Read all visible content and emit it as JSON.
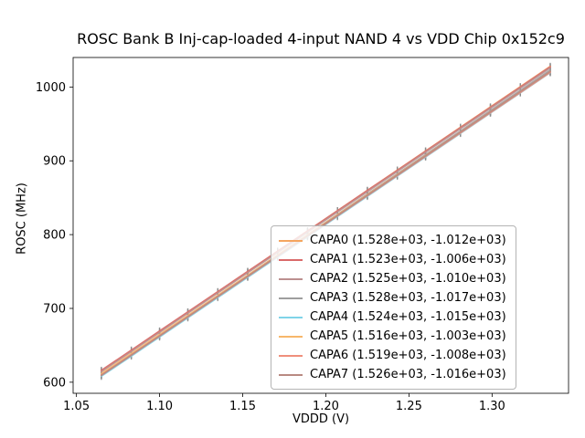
{
  "chart_data": {
    "type": "line",
    "title": "ROSC Bank B Inj-cap-loaded 4-input NAND 4 vs VDD Chip 0x152c9",
    "xlabel": "VDDD (V)",
    "ylabel": "ROSC (MHz)",
    "xlim": [
      1.048,
      1.346
    ],
    "ylim": [
      585,
      1040
    ],
    "xticks": [
      "1.05",
      "1.10",
      "1.15",
      "1.20",
      "1.25",
      "1.30"
    ],
    "xtick_values": [
      1.05,
      1.1,
      1.15,
      1.2,
      1.25,
      1.3
    ],
    "yticks": [
      "600",
      "700",
      "800",
      "900",
      "1000"
    ],
    "ytick_values": [
      600,
      700,
      800,
      900,
      1000
    ],
    "x": [
      1.065,
      1.083,
      1.1,
      1.117,
      1.135,
      1.153,
      1.171,
      1.189,
      1.207,
      1.225,
      1.243,
      1.26,
      1.281,
      1.299,
      1.317,
      1.335
    ],
    "errorbar": {
      "color": "#8a8a8a",
      "half_height": 4
    },
    "legend_position": "lower right of axes",
    "grid": false,
    "series": [
      {
        "name": "CAPA0",
        "label": "CAPA0 (1.528e+03, -1.012e+03)",
        "slope": 1528,
        "intercept": -1012,
        "color": "#f5a55f"
      },
      {
        "name": "CAPA1",
        "label": "CAPA1 (1.523e+03, -1.006e+03)",
        "slope": 1523,
        "intercept": -1006,
        "color": "#d96a6a"
      },
      {
        "name": "CAPA2",
        "label": "CAPA2 (1.525e+03, -1.010e+03)",
        "slope": 1525,
        "intercept": -1010,
        "color": "#bc8f8f"
      },
      {
        "name": "CAPA3",
        "label": "CAPA3 (1.528e+03, -1.017e+03)",
        "slope": 1528,
        "intercept": -1017,
        "color": "#9e9e9e"
      },
      {
        "name": "CAPA4",
        "label": "CAPA4 (1.524e+03, -1.015e+03)",
        "slope": 1524,
        "intercept": -1015,
        "color": "#7fd4e8"
      },
      {
        "name": "CAPA5",
        "label": "CAPA5 (1.516e+03, -1.003e+03)",
        "slope": 1516,
        "intercept": -1003,
        "color": "#f7b76a"
      },
      {
        "name": "CAPA6",
        "label": "CAPA6 (1.519e+03, -1.008e+03)",
        "slope": 1519,
        "intercept": -1008,
        "color": "#ef8f7c"
      },
      {
        "name": "CAPA7",
        "label": "CAPA7 (1.526e+03, -1.016e+03)",
        "slope": 1526,
        "intercept": -1016,
        "color": "#b98a82"
      }
    ]
  }
}
